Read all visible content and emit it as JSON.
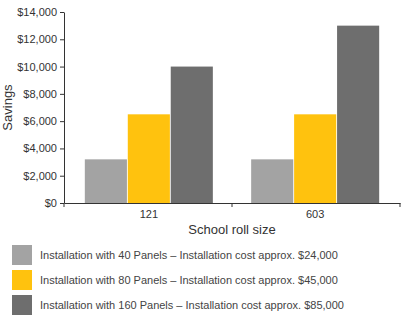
{
  "chart_data": {
    "type": "bar",
    "x_label": "School roll size",
    "y_label": "Savings",
    "categories": [
      "121",
      "603"
    ],
    "series": [
      {
        "name": "Installation with 40 Panels – Installation cost approx. $24,000",
        "color": "#a3a3a3",
        "values": [
          3200,
          3200
        ]
      },
      {
        "name": "Installation with 80 Panels – Installation cost approx. $45,000",
        "color": "#ffc20e",
        "values": [
          6500,
          6500
        ]
      },
      {
        "name": "Installation with 160 Panels – Installation cost approx. $85,000",
        "color": "#6e6e6e",
        "values": [
          10000,
          13000
        ]
      }
    ],
    "ylim": [
      0,
      14000
    ],
    "yticks": [
      {
        "value": 0,
        "label": "$0"
      },
      {
        "value": 2000,
        "label": "$2,000"
      },
      {
        "value": 4000,
        "label": "$4,000"
      },
      {
        "value": 6000,
        "label": "$6,000"
      },
      {
        "value": 8000,
        "label": "$8,000"
      },
      {
        "value": 10000,
        "label": "$10,000"
      },
      {
        "value": 12000,
        "label": "$12,000"
      },
      {
        "value": 14000,
        "label": "$14,000"
      }
    ],
    "grid": false,
    "legend": "bottom"
  }
}
